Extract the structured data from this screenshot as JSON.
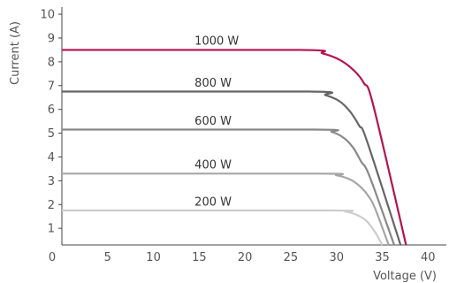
{
  "chart_data": {
    "type": "line",
    "xlabel": "Voltage (V)",
    "ylabel": "Current (A)",
    "xlim": [
      0,
      42
    ],
    "ylim": [
      0.3,
      10.3
    ],
    "x_ticks": [
      "0",
      "5",
      "10",
      "15",
      "20",
      "25",
      "30",
      "35",
      "40"
    ],
    "y_ticks": [
      "1",
      "2",
      "3",
      "4",
      "5",
      "6",
      "7",
      "8",
      "9",
      "10"
    ],
    "grid": false,
    "series": [
      {
        "name": "1000 W",
        "color": "#b5124f",
        "x": [
          0,
          26,
          28.5,
          30.5,
          32,
          33,
          34,
          37.6
        ],
        "y": [
          8.5,
          8.5,
          8.35,
          8.05,
          7.6,
          7.1,
          6.2,
          0.3
        ]
      },
      {
        "name": "800 W",
        "color": "#666666",
        "x": [
          0,
          27,
          28.8,
          30.3,
          31.5,
          32.5,
          33.3,
          37
        ],
        "y": [
          6.75,
          6.75,
          6.6,
          6.35,
          5.9,
          5.3,
          4.7,
          0.3
        ]
      },
      {
        "name": "600 W",
        "color": "#888888",
        "x": [
          0,
          27.5,
          29.5,
          30.8,
          31.8,
          32.7,
          33.6,
          36.3
        ],
        "y": [
          5.15,
          5.15,
          5.05,
          4.8,
          4.4,
          3.8,
          3.2,
          0.3
        ]
      },
      {
        "name": "400 W",
        "color": "#a6a6a6",
        "x": [
          0,
          28,
          30,
          31.5,
          32.6,
          33.5,
          34.2,
          35.7
        ],
        "y": [
          3.3,
          3.3,
          3.23,
          3.05,
          2.75,
          2.35,
          1.85,
          0.3
        ]
      },
      {
        "name": "200 W",
        "color": "#cccccc",
        "x": [
          0,
          29,
          31,
          32.3,
          33.3,
          34.2,
          35
        ],
        "y": [
          1.75,
          1.75,
          1.7,
          1.55,
          1.3,
          0.85,
          0.3
        ]
      }
    ],
    "annotations": [
      {
        "text": "1000 W",
        "x": 14.5,
        "y": 8.72
      },
      {
        "text": "800 W",
        "x": 14.5,
        "y": 6.96
      },
      {
        "text": "600 W",
        "x": 14.5,
        "y": 5.36
      },
      {
        "text": "400 W",
        "x": 14.5,
        "y": 3.52
      },
      {
        "text": "200 W",
        "x": 14.5,
        "y": 1.96
      }
    ]
  }
}
